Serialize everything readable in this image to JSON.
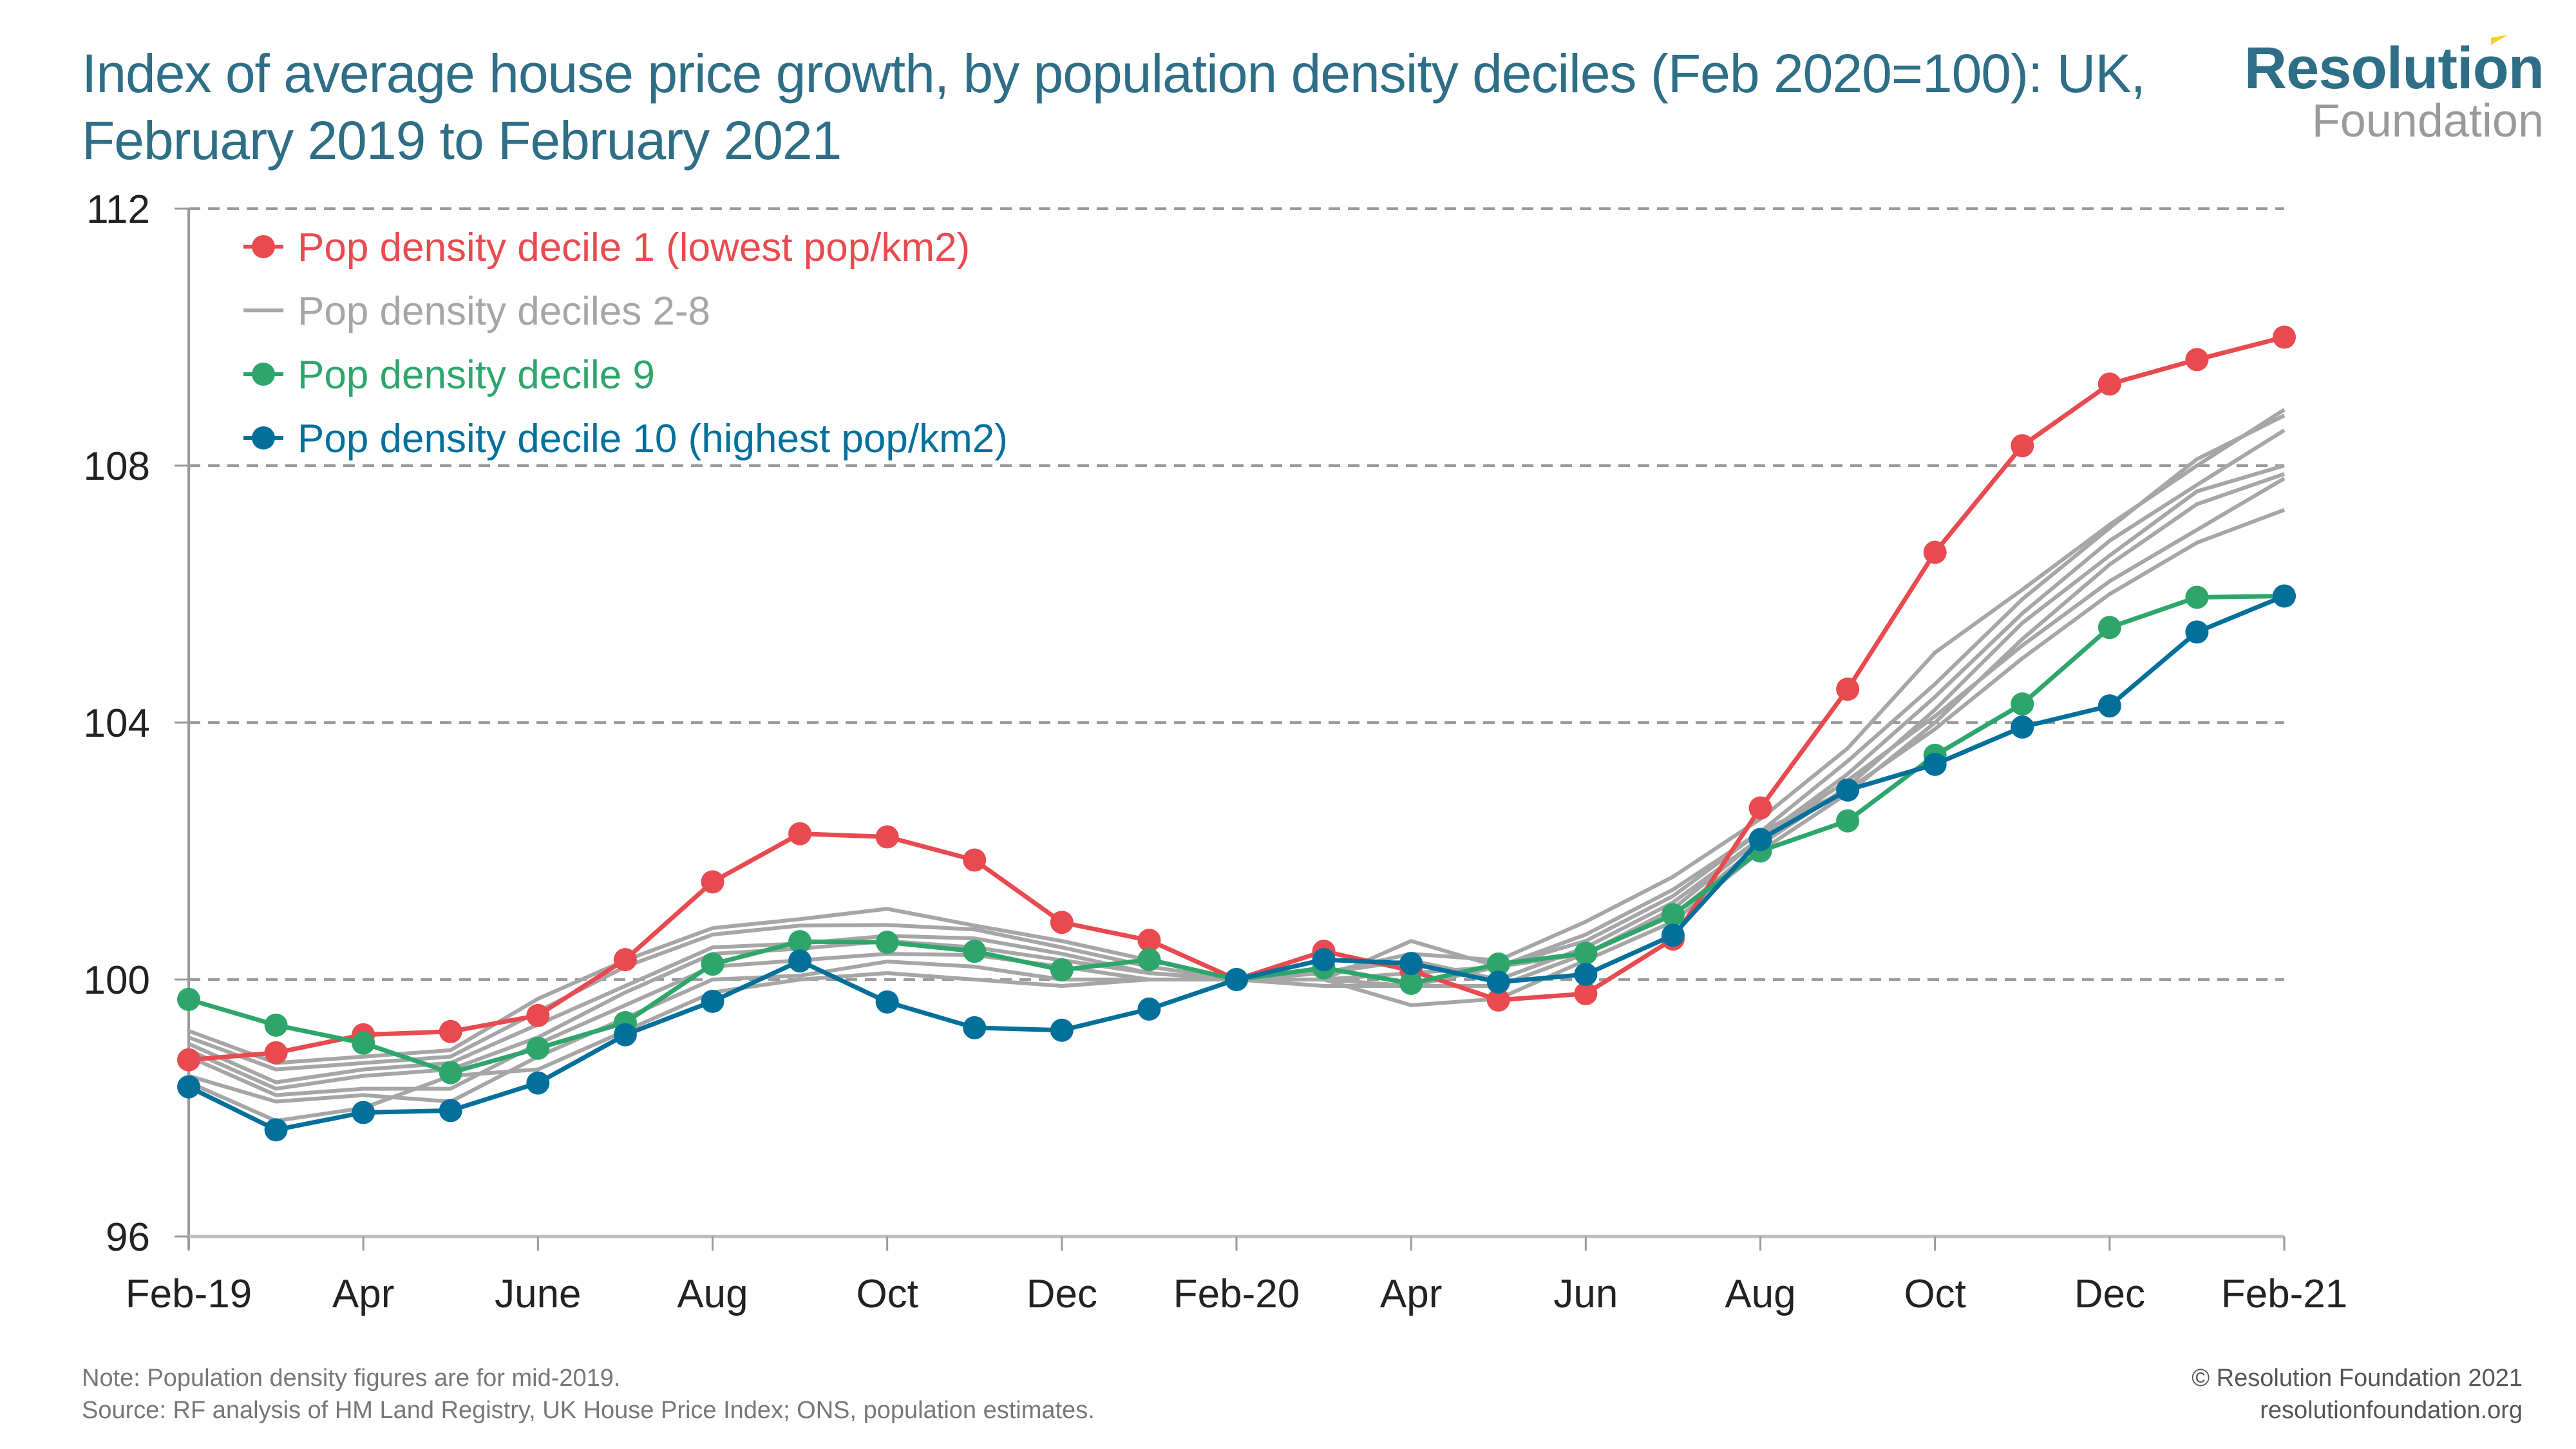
{
  "header": {
    "title": "Index of average house price growth, by population density deciles (Feb 2020=100): UK, February 2019 to February 2021",
    "logo_main": "Resolution",
    "logo_sub": "Foundation"
  },
  "footer": {
    "note": "Note: Population density figures are for mid-2019.",
    "source": "Source: RF analysis of HM Land Registry, UK House Price Index; ONS, population estimates.",
    "copyright": "© Resolution Foundation 2021",
    "website": "resolutionfoundation.org"
  },
  "colors": {
    "title": "#2e6e86",
    "decile1": "#e84a4f",
    "deciles2_8": "#a6a6a6",
    "decile9": "#2ea66b",
    "decile10": "#03709b",
    "grid": "#9a9a9a",
    "logo_accent": "#f5d320"
  },
  "chart_data": {
    "type": "line",
    "title": "Index of average house price growth, by population density deciles (Feb 2020=100): UK, February 2019 to February 2021",
    "xlabel": "",
    "ylabel": "",
    "ylim": [
      96,
      112
    ],
    "yticks": [
      96,
      100,
      104,
      108,
      112
    ],
    "grid": "horizontal dashed",
    "legend_position": "top-left",
    "x": [
      "Feb-19",
      "Mar-19",
      "Apr-19",
      "May-19",
      "Jun-19",
      "Jul-19",
      "Aug-19",
      "Sep-19",
      "Oct-19",
      "Nov-19",
      "Dec-19",
      "Jan-20",
      "Feb-20",
      "Mar-20",
      "Apr-20",
      "May-20",
      "Jun-20",
      "Jul-20",
      "Aug-20",
      "Sep-20",
      "Oct-20",
      "Nov-20",
      "Dec-20",
      "Jan-21",
      "Feb-21"
    ],
    "xtick_labels": [
      {
        "index": 0,
        "label": "Feb-19"
      },
      {
        "index": 2,
        "label": "Apr"
      },
      {
        "index": 4,
        "label": "June"
      },
      {
        "index": 6,
        "label": "Aug"
      },
      {
        "index": 8,
        "label": "Oct"
      },
      {
        "index": 10,
        "label": "Dec"
      },
      {
        "index": 12,
        "label": "Feb-20"
      },
      {
        "index": 14,
        "label": "Apr"
      },
      {
        "index": 16,
        "label": "Jun"
      },
      {
        "index": 18,
        "label": "Aug"
      },
      {
        "index": 20,
        "label": "Oct"
      },
      {
        "index": 22,
        "label": "Dec"
      },
      {
        "index": 24,
        "label": "Feb-21"
      }
    ],
    "series": [
      {
        "name": "Pop density decile 1 (lowest pop/km2)",
        "color_key": "decile1",
        "markers": true,
        "legend": true,
        "values": [
          98.75,
          98.86,
          99.14,
          99.19,
          99.44,
          100.31,
          101.52,
          102.27,
          102.22,
          101.86,
          100.89,
          100.61,
          100.0,
          100.44,
          100.14,
          99.68,
          99.78,
          100.63,
          102.67,
          104.52,
          106.65,
          108.31,
          109.27,
          109.65,
          110.0
        ]
      },
      {
        "name": "Pop density deciles 2-8",
        "color_key": "deciles2_8",
        "markers": false,
        "legend": true,
        "group": "d2-8",
        "values": [
          99.2,
          98.7,
          98.8,
          98.9,
          99.7,
          100.3,
          100.8,
          100.94,
          101.1,
          100.84,
          100.6,
          100.3,
          100.0,
          100.1,
          100.4,
          100.3,
          100.9,
          101.6,
          102.5,
          103.6,
          105.09,
          106.07,
          107.08,
          108.0,
          108.87
        ]
      },
      {
        "name": "Pop density deciles 2-8",
        "color_key": "deciles2_8",
        "markers": false,
        "legend": false,
        "group": "d2-8",
        "values": [
          99.1,
          98.6,
          98.7,
          98.8,
          99.5,
          100.2,
          100.7,
          100.84,
          100.85,
          100.78,
          100.5,
          100.2,
          100.0,
          100.0,
          100.6,
          100.2,
          100.7,
          101.4,
          102.3,
          103.4,
          104.6,
          105.92,
          107.03,
          108.1,
          108.78
        ]
      },
      {
        "name": "Pop density deciles 2-8",
        "color_key": "deciles2_8",
        "markers": false,
        "legend": false,
        "group": "d2-8",
        "values": [
          99.0,
          98.4,
          98.6,
          98.7,
          99.3,
          99.9,
          100.5,
          100.56,
          100.68,
          100.64,
          100.4,
          100.1,
          100.0,
          100.1,
          100.3,
          100.0,
          100.5,
          101.2,
          102.2,
          103.2,
          104.4,
          105.7,
          106.83,
          107.7,
          108.55
        ]
      },
      {
        "name": "Pop density deciles 2-8",
        "color_key": "deciles2_8",
        "markers": false,
        "legend": false,
        "group": "d2-8",
        "values": [
          98.9,
          98.3,
          98.5,
          98.6,
          99.1,
          99.8,
          100.4,
          100.48,
          100.6,
          100.5,
          100.3,
          100.1,
          100.0,
          100.0,
          99.9,
          99.9,
          100.4,
          101.0,
          102.1,
          103.0,
          104.2,
          105.55,
          106.6,
          107.6,
          108.0
        ]
      },
      {
        "name": "Pop density deciles 2-8",
        "color_key": "deciles2_8",
        "markers": false,
        "legend": false,
        "group": "d2-8",
        "values": [
          98.8,
          98.2,
          98.3,
          98.3,
          99.0,
          99.6,
          100.2,
          100.3,
          100.4,
          100.38,
          100.2,
          100.0,
          100.0,
          100.0,
          99.6,
          99.7,
          100.3,
          100.9,
          102.0,
          102.9,
          104.0,
          105.3,
          106.46,
          107.4,
          107.87
        ]
      },
      {
        "name": "Pop density deciles 2-8",
        "color_key": "deciles2_8",
        "markers": false,
        "legend": false,
        "group": "d2-8",
        "values": [
          98.5,
          98.1,
          98.2,
          98.1,
          98.8,
          99.4,
          100.0,
          100.06,
          100.28,
          100.2,
          100.0,
          100.0,
          100.0,
          99.9,
          99.9,
          100.2,
          100.4,
          101.1,
          102.2,
          103.1,
          104.1,
          105.2,
          106.2,
          107.0,
          107.8
        ]
      },
      {
        "name": "Pop density deciles 2-8",
        "color_key": "deciles2_8",
        "markers": false,
        "legend": false,
        "group": "d2-8",
        "values": [
          98.4,
          97.8,
          98.0,
          98.5,
          98.6,
          99.2,
          99.8,
          100.0,
          100.1,
          100.0,
          99.9,
          100.0,
          100.0,
          100.0,
          100.1,
          100.2,
          100.6,
          101.3,
          102.3,
          102.95,
          103.9,
          105.0,
          106.0,
          106.8,
          107.31
        ]
      },
      {
        "name": "Pop density decile 9",
        "color_key": "decile9",
        "markers": true,
        "legend": true,
        "values": [
          99.69,
          99.29,
          99.01,
          98.55,
          98.93,
          99.33,
          100.24,
          100.59,
          100.58,
          100.44,
          100.15,
          100.31,
          100.0,
          100.18,
          99.94,
          100.24,
          100.41,
          101.01,
          102.0,
          102.47,
          103.49,
          104.29,
          105.48,
          105.95,
          105.97
        ]
      },
      {
        "name": "Pop density decile 10 (highest pop/km2)",
        "color_key": "decile10",
        "markers": true,
        "legend": true,
        "values": [
          98.33,
          97.66,
          97.93,
          97.96,
          98.39,
          99.14,
          99.66,
          100.29,
          99.65,
          99.25,
          99.21,
          99.54,
          100.0,
          100.31,
          100.25,
          99.96,
          100.08,
          100.69,
          102.18,
          102.95,
          103.35,
          103.93,
          104.26,
          105.41,
          105.97
        ]
      }
    ],
    "legend": [
      {
        "label": "Pop density decile 1 (lowest pop/km2)",
        "color_key": "decile1",
        "marker": true
      },
      {
        "label": "Pop density deciles 2-8",
        "color_key": "deciles2_8",
        "marker": false
      },
      {
        "label": "Pop density decile 9",
        "color_key": "decile9",
        "marker": true
      },
      {
        "label": "Pop density decile 10 (highest pop/km2)",
        "color_key": "decile10",
        "marker": true
      }
    ]
  }
}
